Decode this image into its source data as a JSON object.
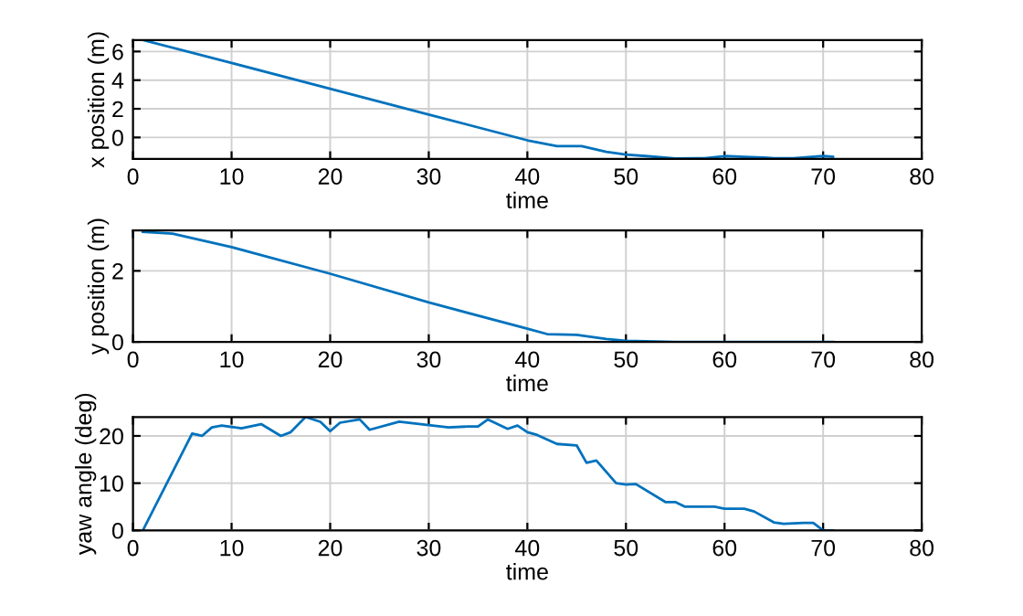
{
  "chart_data": [
    {
      "type": "line",
      "xlabel": "time",
      "ylabel": "x position (m)",
      "xlim": [
        0,
        80
      ],
      "xticks": [
        0,
        10,
        20,
        30,
        40,
        50,
        60,
        70,
        80
      ],
      "ylim": [
        -1.5,
        6.8
      ],
      "yticks": [
        0,
        2,
        4,
        6
      ],
      "grid": true,
      "series": [
        {
          "color": "#0072bd",
          "x": [
            1,
            10,
            20,
            30,
            40,
            43,
            45.5,
            48,
            50,
            52,
            55,
            58,
            60,
            62,
            64,
            65,
            67,
            70,
            71
          ],
          "values": [
            6.8,
            5.2,
            3.4,
            1.6,
            -0.2,
            -0.6,
            -0.6,
            -1.0,
            -1.2,
            -1.3,
            -1.47,
            -1.45,
            -1.3,
            -1.35,
            -1.4,
            -1.45,
            -1.45,
            -1.3,
            -1.35
          ]
        }
      ]
    },
    {
      "type": "line",
      "xlabel": "time",
      "ylabel": "y position (m)",
      "xlim": [
        0,
        80
      ],
      "xticks": [
        0,
        10,
        20,
        30,
        40,
        50,
        60,
        70,
        80
      ],
      "ylim": [
        0,
        3.14
      ],
      "yticks": [
        0,
        2
      ],
      "grid": true,
      "series": [
        {
          "color": "#0072bd",
          "x": [
            1,
            4,
            10,
            20,
            30,
            40,
            42,
            45,
            48,
            50,
            55,
            60,
            71
          ],
          "values": [
            3.1,
            3.05,
            2.67,
            1.92,
            1.11,
            0.37,
            0.22,
            0.2,
            0.08,
            0.03,
            0,
            0,
            0
          ]
        }
      ]
    },
    {
      "type": "line",
      "xlabel": "time",
      "ylabel": "yaw angle (deg)",
      "xlim": [
        0,
        80
      ],
      "xticks": [
        0,
        10,
        20,
        30,
        40,
        50,
        60,
        70,
        80
      ],
      "ylim": [
        0,
        24
      ],
      "yticks": [
        0,
        10,
        20
      ],
      "grid": true,
      "series": [
        {
          "color": "#0072bd",
          "x": [
            1,
            6,
            7,
            8,
            9,
            11,
            13,
            15,
            16,
            17.5,
            19,
            20,
            21,
            23,
            24,
            27,
            30,
            32,
            34,
            35,
            36,
            38,
            39,
            40,
            41,
            43,
            45,
            46,
            47,
            49,
            50,
            51,
            54,
            55,
            56,
            59,
            60,
            62,
            63,
            65,
            66,
            68,
            69,
            70,
            71
          ],
          "values": [
            0,
            20.5,
            20,
            21.8,
            22.2,
            21.6,
            22.5,
            20,
            20.8,
            24,
            23,
            21,
            22.8,
            23.5,
            21.3,
            23,
            22.3,
            21.8,
            22,
            22,
            23.5,
            21.5,
            22.2,
            20.8,
            20.2,
            18.3,
            18,
            14.3,
            14.8,
            10,
            9.7,
            9.8,
            6,
            6,
            5,
            5,
            4.6,
            4.6,
            4,
            1.7,
            1.4,
            1.6,
            1.6,
            0,
            0
          ]
        }
      ]
    }
  ]
}
